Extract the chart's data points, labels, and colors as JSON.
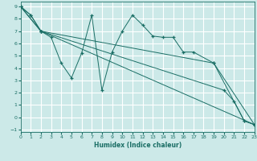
{
  "xlabel": "Humidex (Indice chaleur)",
  "xlim": [
    0,
    23
  ],
  "ylim": [
    -1.2,
    9.4
  ],
  "yticks": [
    -1,
    0,
    1,
    2,
    3,
    4,
    5,
    6,
    7,
    8,
    9
  ],
  "xticks": [
    0,
    1,
    2,
    3,
    4,
    5,
    6,
    7,
    8,
    9,
    10,
    11,
    12,
    13,
    14,
    15,
    16,
    17,
    18,
    19,
    20,
    21,
    22,
    23
  ],
  "background_color": "#cce9e8",
  "grid_color": "#ffffff",
  "line_color": "#1a6e65",
  "series": [
    {
      "x": [
        0,
        1,
        2,
        3,
        4,
        5,
        6,
        7,
        8,
        9,
        10,
        11,
        12,
        13,
        14,
        15,
        16,
        17,
        19,
        22,
        23
      ],
      "y": [
        9.0,
        8.3,
        7.0,
        6.5,
        4.4,
        3.2,
        5.2,
        8.3,
        2.2,
        5.3,
        7.0,
        8.3,
        7.5,
        6.6,
        6.5,
        6.5,
        5.3,
        5.3,
        4.4,
        -0.3,
        -0.6
      ]
    },
    {
      "x": [
        0,
        2,
        23
      ],
      "y": [
        9.0,
        7.0,
        -0.6
      ]
    },
    {
      "x": [
        0,
        2,
        19,
        23
      ],
      "y": [
        9.0,
        7.0,
        4.4,
        -0.6
      ]
    },
    {
      "x": [
        0,
        1,
        2,
        20,
        21,
        22,
        23
      ],
      "y": [
        9.0,
        8.3,
        7.0,
        2.2,
        1.3,
        -0.3,
        -0.6
      ]
    }
  ]
}
